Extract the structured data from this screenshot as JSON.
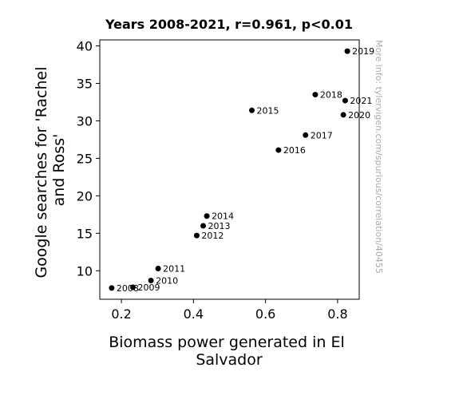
{
  "chart_data": {
    "type": "scatter",
    "title": "Years 2008-2021, r=0.961, p<0.01",
    "xlabel_lines": [
      "Biomass power generated in El",
      "Salvador"
    ],
    "ylabel_lines": [
      "Google searches for 'Rachel",
      "and Ross'"
    ],
    "xlim": [
      0.14,
      0.86
    ],
    "ylim": [
      6.2,
      40.8
    ],
    "xticks": [
      0.2,
      0.4,
      0.6,
      0.8
    ],
    "yticks": [
      10,
      15,
      20,
      25,
      30,
      35,
      40
    ],
    "xtick_labels": [
      "0.2",
      "0.4",
      "0.6",
      "0.8"
    ],
    "ytick_labels": [
      "10",
      "15",
      "20",
      "25",
      "30",
      "35",
      "40"
    ],
    "grid": false,
    "points": [
      {
        "label": "2008",
        "x": 0.173,
        "y": 7.7
      },
      {
        "label": "2009",
        "x": 0.232,
        "y": 7.8
      },
      {
        "label": "2010",
        "x": 0.282,
        "y": 8.7
      },
      {
        "label": "2011",
        "x": 0.302,
        "y": 10.3
      },
      {
        "label": "2012",
        "x": 0.409,
        "y": 14.7
      },
      {
        "label": "2013",
        "x": 0.427,
        "y": 16.0
      },
      {
        "label": "2014",
        "x": 0.437,
        "y": 17.3
      },
      {
        "label": "2015",
        "x": 0.562,
        "y": 31.4
      },
      {
        "label": "2016",
        "x": 0.636,
        "y": 26.1
      },
      {
        "label": "2017",
        "x": 0.711,
        "y": 28.1
      },
      {
        "label": "2018",
        "x": 0.738,
        "y": 33.5
      },
      {
        "label": "2019",
        "x": 0.827,
        "y": 39.3
      },
      {
        "label": "2020",
        "x": 0.816,
        "y": 30.8
      },
      {
        "label": "2021",
        "x": 0.821,
        "y": 32.7
      }
    ],
    "watermark": "More info: tylervigen.com/spurious/correlation/40455"
  }
}
